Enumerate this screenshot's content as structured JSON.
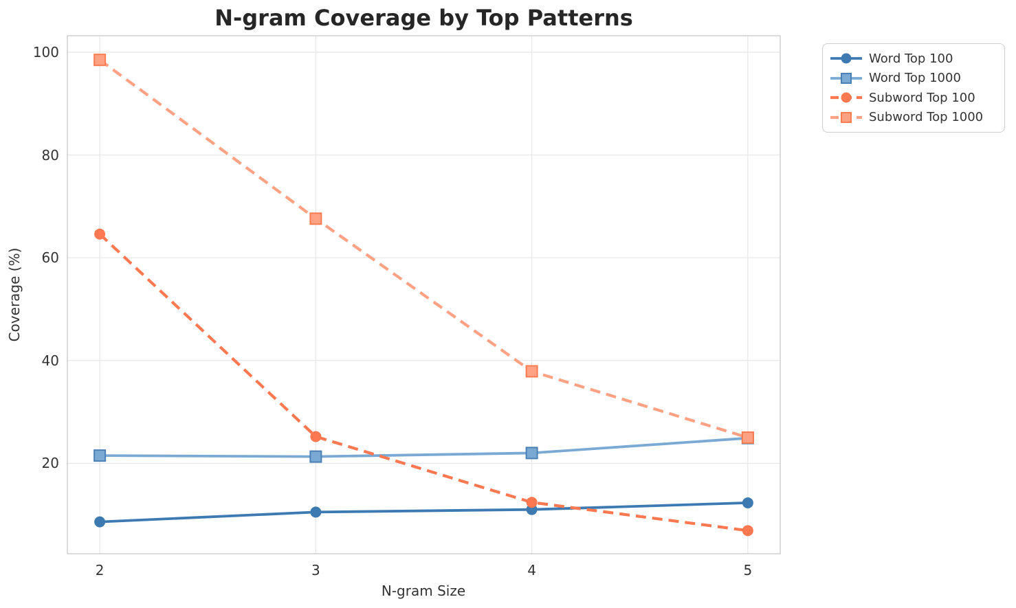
{
  "title": "N-gram Coverage by Top Patterns",
  "chart_data": {
    "type": "line",
    "title": "N-gram Coverage by Top Patterns",
    "xlabel": "N-gram Size",
    "ylabel": "Coverage (%)",
    "x": [
      2,
      3,
      4,
      5
    ],
    "x_ticks": [
      2,
      3,
      4,
      5
    ],
    "x_tick_labels": [
      "2",
      "3",
      "4",
      "5"
    ],
    "y_ticks": [
      20,
      40,
      60,
      80,
      100
    ],
    "y_tick_labels": [
      "20",
      "40",
      "60",
      "80",
      "100"
    ],
    "xlim": [
      1.85,
      5.15
    ],
    "ylim": [
      2.4,
      103.2
    ],
    "grid": true,
    "legend_position": "outside-upper-right",
    "series": [
      {
        "name": "Word Top 100",
        "marker": "circle",
        "style": "solid",
        "color": "#3d7ab2",
        "values": [
          8.6,
          10.5,
          11.0,
          12.3
        ]
      },
      {
        "name": "Word Top 1000",
        "marker": "square",
        "style": "solid",
        "color": "#7aa9d4",
        "marker_edge": "#4a80b5",
        "values": [
          21.5,
          21.3,
          22.0,
          24.9
        ]
      },
      {
        "name": "Subword Top 100",
        "marker": "circle",
        "style": "dashed",
        "color": "#fc7851",
        "values": [
          64.6,
          25.2,
          12.4,
          6.9
        ]
      },
      {
        "name": "Subword Top 1000",
        "marker": "square",
        "style": "dashed",
        "color": "#ffa183",
        "marker_edge": "#f97c52",
        "values": [
          98.5,
          67.6,
          37.9,
          25.0
        ]
      }
    ]
  },
  "colors": {
    "grid": "#e8e8e8",
    "spine": "#cccccc",
    "title": "#262626",
    "text": "#333333",
    "background": "#ffffff"
  }
}
